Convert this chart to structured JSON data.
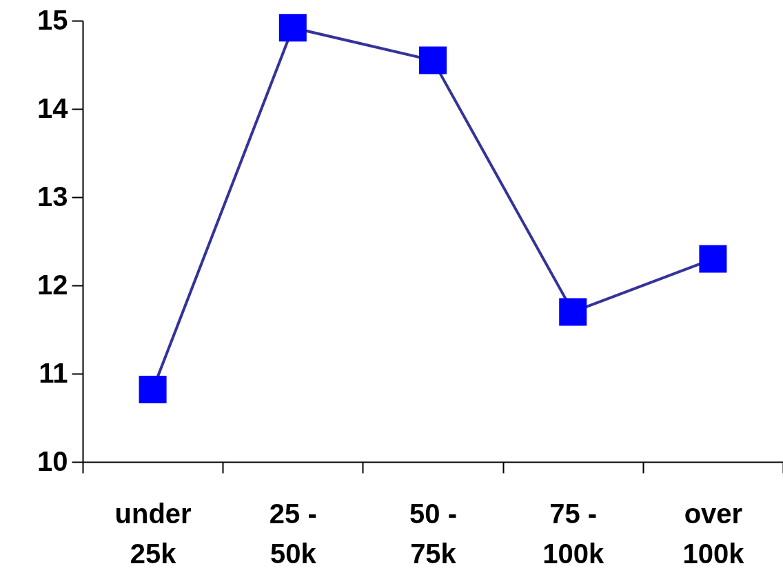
{
  "chart_data": {
    "type": "line",
    "categories": [
      "under 25k",
      "25 - 50k",
      "50 - 75k",
      "75 - 100k",
      "over 100k"
    ],
    "series": [
      {
        "color": "#333399",
        "colors": [
          "#0000ff",
          "#0000ff",
          "#0000ff",
          "#0000ff",
          "#0000ff"
        ],
        "values": [
          10.82,
          14.92,
          14.55,
          11.7,
          12.3
        ]
      }
    ],
    "ylim": [
      10,
      15
    ],
    "yticks": [
      10,
      11,
      12,
      13,
      14,
      15
    ],
    "marker": "square",
    "line_style": "solid",
    "grid": false
  }
}
